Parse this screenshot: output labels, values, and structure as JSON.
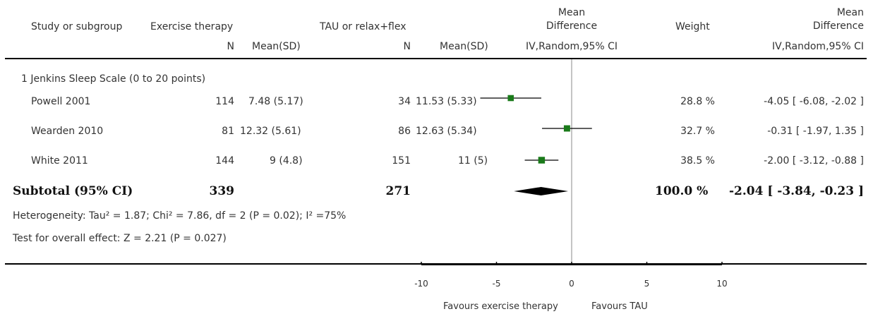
{
  "header": {
    "study": "Study or subgroup",
    "group1": "Exercise therapy",
    "group2": "TAU or relax+flex",
    "md_line1": "Mean",
    "md_line2": "Difference",
    "weight": "Weight",
    "md2_line1": "Mean",
    "md2_line2": "Difference",
    "n1": "N",
    "mean1": "Mean(SD)",
    "n2": "N",
    "mean2": "Mean(SD)",
    "method1": "IV,Random,95% CI",
    "method2": "IV,Random,95% CI"
  },
  "subgroup_title": "1 Jenkins Sleep Scale (0 to 20 points)",
  "studies": [
    {
      "name": "Powell 2001",
      "n1": "114",
      "mean1": "7.48 (5.17)",
      "n2": "34",
      "mean2": "11.53 (5.33)",
      "weight": "28.8 %",
      "ci": "-4.05 [ -6.08, -2.02 ]"
    },
    {
      "name": "Wearden 2010",
      "n1": "81",
      "mean1": "12.32 (5.61)",
      "n2": "86",
      "mean2": "12.63 (5.34)",
      "weight": "32.7 %",
      "ci": "-0.31 [ -1.97, 1.35 ]"
    },
    {
      "name": "White 2011",
      "n1": "144",
      "mean1": "9 (4.8)",
      "n2": "151",
      "mean2": "11 (5)",
      "weight": "38.5 %",
      "ci": "-2.00 [ -3.12, -0.88 ]"
    }
  ],
  "subtotal": {
    "label": "Subtotal (95% CI)",
    "n1": "339",
    "n2": "271",
    "weight": "100.0 %",
    "ci": "-2.04 [ -3.84, -0.23 ]"
  },
  "heterogeneity": "Heterogeneity: Tau² = 1.87; Chi² = 7.86, df = 2 (P = 0.02); I² =75%",
  "overall_effect": "Test for overall effect: Z = 2.21 (P = 0.027)",
  "favours_left": "Favours exercise therapy",
  "favours_right": "Favours TAU",
  "colors": {
    "box": "#1a7a1a",
    "line": "#000000",
    "axis": "#000000",
    "zero_line": "#888888"
  },
  "chart_data": {
    "type": "forest",
    "xlim": [
      -10,
      10
    ],
    "xticks": [
      -10,
      -5,
      0,
      5,
      10
    ],
    "xtick_labels": [
      "-10",
      "-5",
      "0",
      "5",
      "10"
    ],
    "studies": [
      {
        "name": "Powell 2001",
        "md": -4.05,
        "lo": -6.08,
        "hi": -2.02,
        "weight": 28.8
      },
      {
        "name": "Wearden 2010",
        "md": -0.31,
        "lo": -1.97,
        "hi": 1.35,
        "weight": 32.7
      },
      {
        "name": "White 2011",
        "md": -2.0,
        "lo": -3.12,
        "hi": -0.88,
        "weight": 38.5
      }
    ],
    "pooled": {
      "md": -2.04,
      "lo": -3.84,
      "hi": -0.23
    }
  }
}
